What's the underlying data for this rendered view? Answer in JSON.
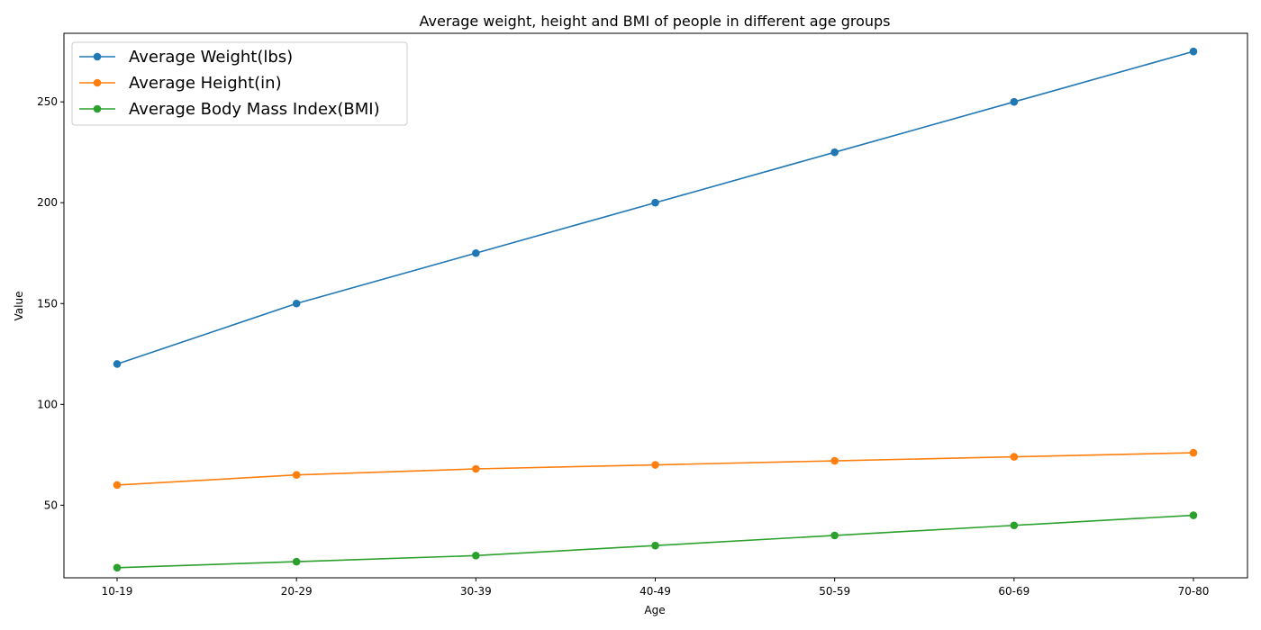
{
  "chart_data": {
    "type": "line",
    "title": "Average weight, height and BMI of people in different age groups",
    "xlabel": "Age",
    "ylabel": "Value",
    "categories": [
      "10-19",
      "20-29",
      "30-39",
      "40-49",
      "50-59",
      "60-69",
      "70-80"
    ],
    "ylim": [
      14,
      284
    ],
    "yticks": [
      50,
      100,
      150,
      200,
      250
    ],
    "grid": false,
    "legend_position": "top-left",
    "series": [
      {
        "name": "Average Weight(lbs)",
        "color": "#1f77b4",
        "values": [
          120,
          150,
          175,
          200,
          225,
          250,
          275
        ]
      },
      {
        "name": "Average Height(in)",
        "color": "#ff7f0e",
        "values": [
          60,
          65,
          68,
          70,
          72,
          74,
          76
        ]
      },
      {
        "name": "Average Body Mass Index(BMI)",
        "color": "#2ca02c",
        "values": [
          19,
          22,
          25,
          30,
          35,
          40,
          45
        ]
      }
    ]
  }
}
